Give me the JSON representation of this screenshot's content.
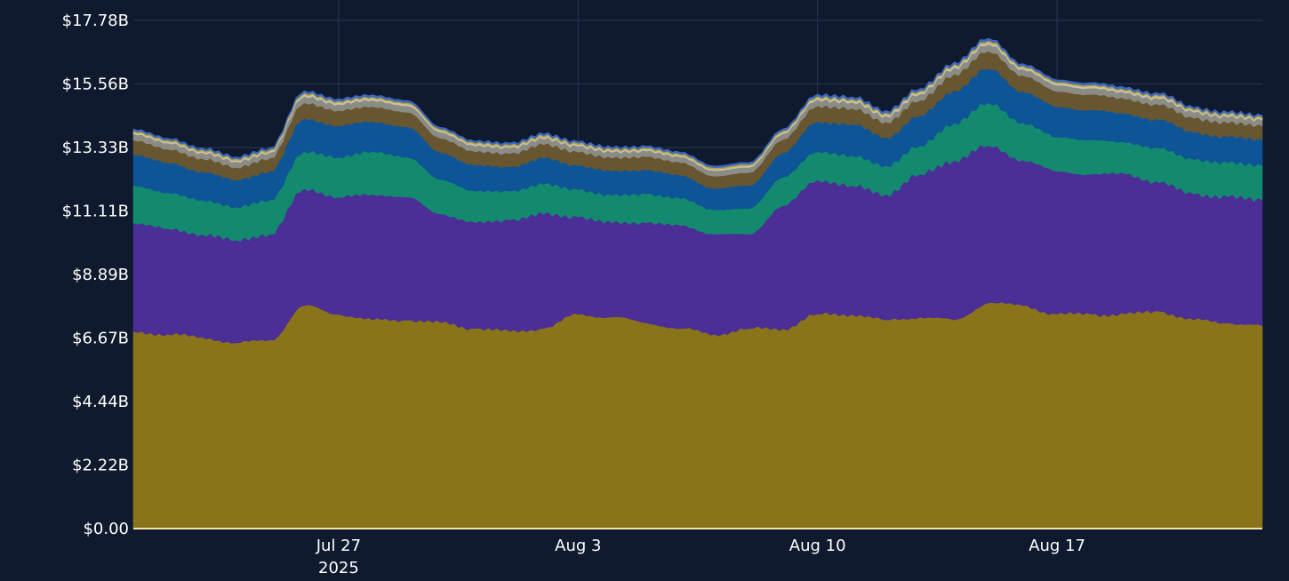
{
  "chart_data": {
    "type": "area",
    "stacked": true,
    "grid": true,
    "legend": "none",
    "background": "#101a2e",
    "gridColor": "#2a3656",
    "baselineColor": "#f2e2a6",
    "ylim": [
      0,
      17.78
    ],
    "y_ticks": [
      0,
      2.22,
      4.44,
      6.67,
      8.89,
      11.11,
      13.33,
      15.56,
      17.78
    ],
    "y_tick_labels": [
      "$0.00",
      "$2.22B",
      "$4.44B",
      "$6.67B",
      "$8.89B",
      "$11.11B",
      "$13.33B",
      "$15.56B",
      "$17.78B"
    ],
    "xlim": [
      "2025-07-21",
      "2025-08-23"
    ],
    "x_ticks": [
      "2025-07-27",
      "2025-08-03",
      "2025-08-10",
      "2025-08-17"
    ],
    "x_tick_labels": [
      [
        "Jul 27",
        "2025"
      ],
      [
        "Aug 3"
      ],
      [
        "Aug 10"
      ],
      [
        "Aug 17"
      ]
    ],
    "x": [
      "2025-07-21",
      "2025-07-22",
      "2025-07-23",
      "2025-07-24",
      "2025-07-25",
      "2025-07-26",
      "2025-07-27",
      "2025-07-28",
      "2025-07-29",
      "2025-07-30",
      "2025-07-31",
      "2025-08-01",
      "2025-08-02",
      "2025-08-03",
      "2025-08-04",
      "2025-08-05",
      "2025-08-06",
      "2025-08-07",
      "2025-08-08",
      "2025-08-09",
      "2025-08-10",
      "2025-08-11",
      "2025-08-12",
      "2025-08-13",
      "2025-08-14",
      "2025-08-15",
      "2025-08-16",
      "2025-08-17",
      "2025-08-18",
      "2025-08-19",
      "2025-08-20",
      "2025-08-21",
      "2025-08-22",
      "2025-08-23"
    ],
    "series": [
      {
        "color": "#8a741a",
        "values": [
          6.9,
          6.8,
          6.7,
          6.5,
          6.6,
          7.8,
          7.5,
          7.3,
          7.3,
          7.2,
          7.0,
          6.9,
          7.0,
          7.5,
          7.4,
          7.2,
          7.0,
          6.8,
          7.0,
          7.0,
          7.5,
          7.5,
          7.3,
          7.4,
          7.3,
          7.9,
          7.8,
          7.5,
          7.5,
          7.5,
          7.6,
          7.3,
          7.2,
          7.1
        ]
      },
      {
        "color": "#4b2e96",
        "values": [
          3.8,
          3.7,
          3.6,
          3.6,
          3.7,
          4.1,
          4.1,
          4.4,
          4.3,
          3.8,
          3.7,
          3.9,
          4.0,
          3.4,
          3.3,
          3.5,
          3.6,
          3.5,
          3.3,
          4.3,
          4.7,
          4.5,
          4.4,
          5.0,
          5.6,
          5.5,
          5.1,
          5.0,
          4.9,
          4.9,
          4.5,
          4.4,
          4.4,
          4.4
        ]
      },
      {
        "color": "#138a6e",
        "values": [
          1.3,
          1.25,
          1.2,
          1.15,
          1.2,
          1.3,
          1.4,
          1.5,
          1.4,
          1.2,
          1.1,
          1.0,
          1.05,
          0.95,
          0.95,
          1.0,
          0.95,
          0.85,
          0.9,
          1.0,
          1.0,
          1.05,
          1.0,
          1.0,
          1.3,
          1.5,
          1.3,
          1.2,
          1.2,
          1.1,
          1.2,
          1.2,
          1.2,
          1.2
        ]
      },
      {
        "color": "#0e5598",
        "values": [
          1.1,
          1.05,
          1.0,
          0.95,
          1.0,
          1.15,
          1.1,
          1.05,
          1.05,
          0.95,
          0.9,
          0.85,
          0.9,
          0.85,
          0.85,
          0.85,
          0.8,
          0.75,
          0.8,
          0.85,
          1.05,
          1.1,
          1.0,
          1.05,
          1.15,
          1.2,
          1.1,
          1.05,
          1.05,
          1.0,
          1.0,
          0.95,
          0.9,
          0.9
        ]
      },
      {
        "color": "#675630",
        "values": [
          0.5,
          0.48,
          0.46,
          0.44,
          0.46,
          0.55,
          0.53,
          0.52,
          0.52,
          0.5,
          0.48,
          0.47,
          0.48,
          0.47,
          0.46,
          0.46,
          0.45,
          0.43,
          0.45,
          0.47,
          0.55,
          0.55,
          0.53,
          0.54,
          0.56,
          0.6,
          0.56,
          0.54,
          0.54,
          0.52,
          0.52,
          0.5,
          0.49,
          0.49
        ]
      },
      {
        "color": "#8c8c86",
        "values": [
          0.22,
          0.21,
          0.2,
          0.2,
          0.2,
          0.23,
          0.22,
          0.22,
          0.22,
          0.21,
          0.2,
          0.2,
          0.2,
          0.2,
          0.2,
          0.2,
          0.19,
          0.19,
          0.19,
          0.2,
          0.22,
          0.22,
          0.21,
          0.22,
          0.23,
          0.24,
          0.22,
          0.22,
          0.22,
          0.21,
          0.21,
          0.21,
          0.2,
          0.2
        ]
      },
      {
        "color": "#c9c2a4",
        "values": [
          0.06,
          0.06,
          0.06,
          0.06,
          0.06,
          0.07,
          0.07,
          0.07,
          0.07,
          0.06,
          0.06,
          0.06,
          0.06,
          0.06,
          0.06,
          0.06,
          0.06,
          0.06,
          0.06,
          0.06,
          0.07,
          0.07,
          0.07,
          0.07,
          0.07,
          0.08,
          0.07,
          0.07,
          0.07,
          0.07,
          0.07,
          0.06,
          0.06,
          0.06
        ]
      },
      {
        "color": "#b5a23a",
        "values": [
          0.05,
          0.05,
          0.05,
          0.05,
          0.05,
          0.05,
          0.05,
          0.05,
          0.05,
          0.05,
          0.05,
          0.05,
          0.05,
          0.05,
          0.05,
          0.05,
          0.05,
          0.05,
          0.05,
          0.05,
          0.05,
          0.05,
          0.05,
          0.05,
          0.05,
          0.06,
          0.05,
          0.05,
          0.05,
          0.05,
          0.05,
          0.05,
          0.05,
          0.05
        ]
      },
      {
        "color": "#3a66c4",
        "values": [
          0.06,
          0.06,
          0.06,
          0.06,
          0.06,
          0.07,
          0.07,
          0.07,
          0.07,
          0.06,
          0.06,
          0.06,
          0.06,
          0.06,
          0.06,
          0.06,
          0.06,
          0.06,
          0.06,
          0.06,
          0.07,
          0.07,
          0.07,
          0.07,
          0.07,
          0.08,
          0.07,
          0.07,
          0.07,
          0.07,
          0.07,
          0.06,
          0.06,
          0.06
        ]
      }
    ]
  }
}
